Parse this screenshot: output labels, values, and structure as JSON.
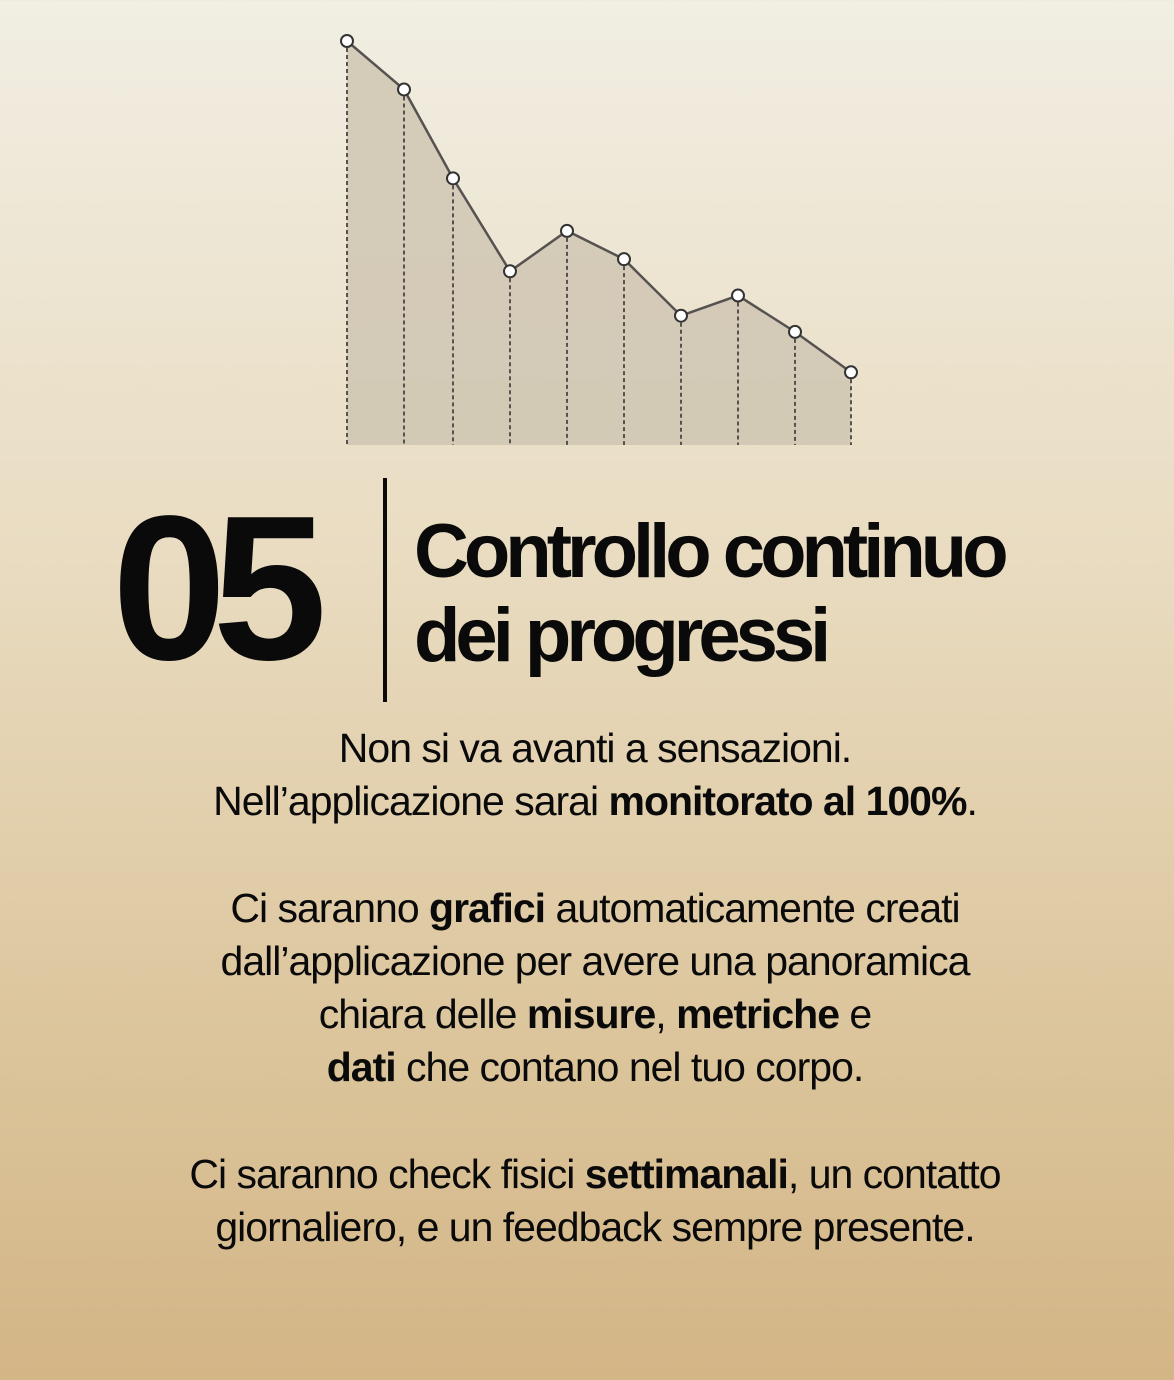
{
  "chart_data": {
    "type": "area",
    "values": [
      100,
      88,
      66,
      43,
      53,
      46,
      32,
      37,
      28,
      18
    ],
    "grid": false,
    "colors": {
      "line": "#555250",
      "fill": "#cfc5b3",
      "drop_lines": "#555250",
      "markers": "#ffffff"
    }
  },
  "section": {
    "number": "05",
    "title_line1": "Controllo continuo",
    "title_line2": "dei progressi"
  },
  "body": {
    "p1_l1": "Non si va avanti a sensazioni.",
    "p1_l2_a": "Nell’applicazione sarai ",
    "p1_l2_b": "monitorato al 100%",
    "p1_l2_c": ".",
    "p2_l1_a": "Ci saranno ",
    "p2_l1_b": "grafici",
    "p2_l1_c": " automaticamente creati",
    "p2_l2": "dall’applicazione per avere una panoramica",
    "p2_l3_a": "chiara delle ",
    "p2_l3_b": "misure",
    "p2_l3_c": ", ",
    "p2_l3_d": "metriche",
    "p2_l3_e": " e",
    "p2_l4_a": "dati",
    "p2_l4_b": " che contano nel tuo corpo.",
    "p3_l1_a": "Ci saranno check fisici ",
    "p3_l1_b": "settimanali",
    "p3_l1_c": ", un contatto",
    "p3_l2": "giornaliero, e un feedback sempre presente."
  }
}
